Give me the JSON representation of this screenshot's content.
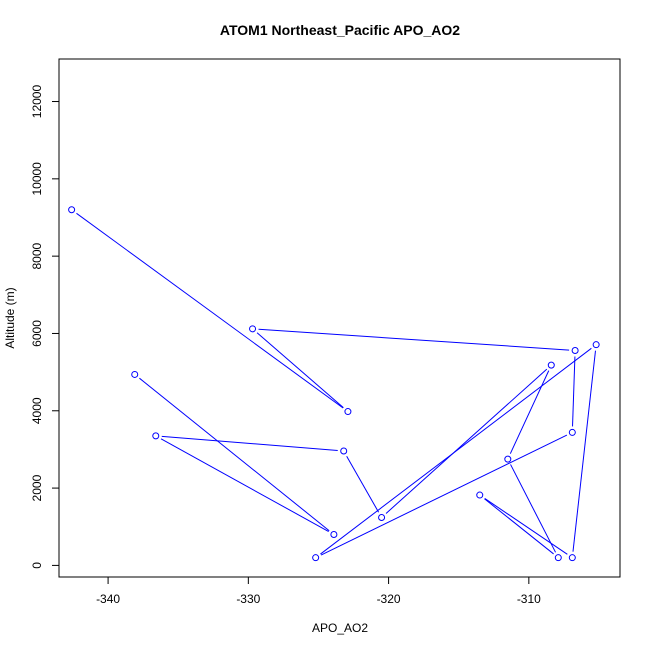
{
  "chart_data": {
    "type": "line",
    "title": "ATOM1 Northeast_Pacific APO_AO2",
    "xlabel": "APO_AO2",
    "ylabel": "Altitude (m)",
    "xlim": [
      -343.5,
      -303.5
    ],
    "ylim": [
      -300,
      13100
    ],
    "x_ticks": [
      -340,
      -330,
      -320,
      -310
    ],
    "x_tick_labels": [
      "-340",
      "-330",
      "-320",
      "-310"
    ],
    "y_ticks": [
      0,
      2000,
      4000,
      6000,
      8000,
      10000,
      12000
    ],
    "y_tick_labels": [
      "0",
      "2000",
      "4000",
      "6000",
      "8000",
      "10000",
      "12000"
    ],
    "grid": false,
    "legend": false,
    "series": [
      {
        "color": "#0000ff",
        "marker": "open-circle",
        "points": [
          {
            "x": -342.6,
            "y": 9200
          },
          {
            "x": -322.9,
            "y": 3980
          },
          {
            "x": -329.7,
            "y": 6120
          },
          {
            "x": -306.7,
            "y": 5560
          },
          {
            "x": -306.9,
            "y": 3440
          },
          {
            "x": -325.2,
            "y": 200
          },
          {
            "x": -305.2,
            "y": 5710
          },
          {
            "x": -306.9,
            "y": 200
          },
          {
            "x": -313.5,
            "y": 1820
          },
          {
            "x": -307.9,
            "y": 200
          },
          {
            "x": -311.5,
            "y": 2750
          },
          {
            "x": -308.4,
            "y": 5180
          },
          {
            "x": -320.5,
            "y": 1240
          },
          {
            "x": -323.2,
            "y": 2960
          },
          {
            "x": -336.6,
            "y": 3350
          },
          {
            "x": -323.9,
            "y": 800
          },
          {
            "x": -338.1,
            "y": 4940
          }
        ]
      }
    ]
  }
}
